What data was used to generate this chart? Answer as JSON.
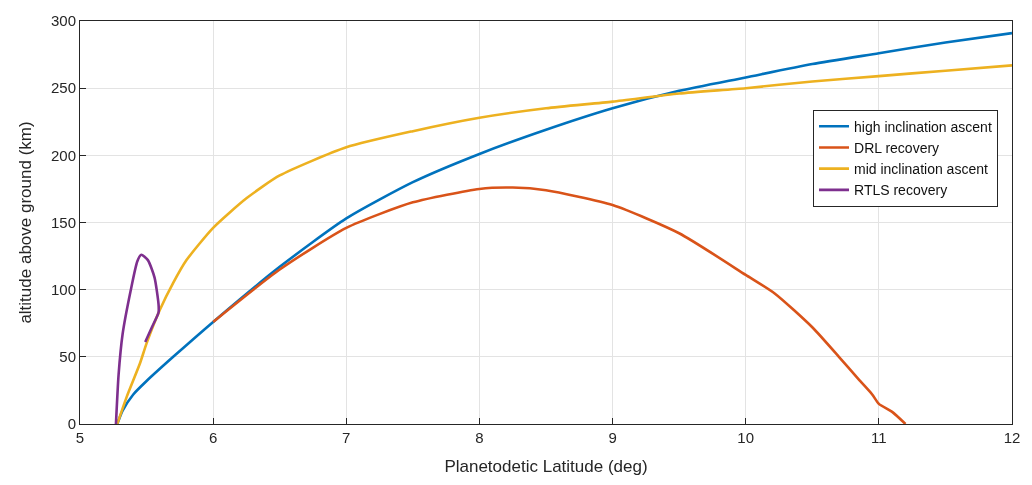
{
  "chart_data": {
    "type": "line",
    "xlabel": "Planetodetic Latitude (deg)",
    "ylabel": "altitude above ground (km)",
    "xlim": [
      5,
      12
    ],
    "ylim": [
      0,
      300
    ],
    "xticks": [
      5,
      6,
      7,
      8,
      9,
      10,
      11,
      12
    ],
    "yticks": [
      0,
      50,
      100,
      150,
      200,
      250,
      300
    ],
    "grid": true,
    "legend": "right",
    "marker": "none",
    "line_style": "solid",
    "series": [
      {
        "name": "high inclination ascent",
        "color": "#0072bd",
        "x": [
          5.28,
          5.32,
          5.4,
          5.5,
          5.7,
          6,
          6.5,
          7,
          7.5,
          8,
          8.5,
          9,
          9.5,
          10,
          10.5,
          11,
          11.5,
          12
        ],
        "values": [
          0,
          10,
          22,
          32,
          50,
          76,
          117,
          153,
          180,
          201,
          219,
          235,
          248,
          258,
          268,
          276,
          284,
          291
        ]
      },
      {
        "name": "DRL recovery",
        "color": "#d95319",
        "x": [
          6,
          6.5,
          7,
          7.5,
          8,
          8.25,
          8.5,
          9,
          9.5,
          10,
          10.22,
          10.5,
          10.7,
          10.85,
          10.95,
          11,
          11.1,
          11.2
        ],
        "values": [
          76,
          115,
          146,
          165,
          175,
          176,
          174,
          163,
          142,
          111,
          97,
          72,
          50,
          33,
          22,
          15,
          9,
          0
        ]
      },
      {
        "name": "mid inclination ascent",
        "color": "#edb120",
        "x": [
          5.28,
          5.35,
          5.45,
          5.5,
          5.6,
          5.7,
          5.8,
          6,
          6.25,
          6.5,
          7,
          7.5,
          8,
          8.5,
          9,
          9.5,
          10,
          10.5,
          11,
          11.5,
          12
        ],
        "values": [
          0,
          20,
          45,
          60,
          85,
          105,
          122,
          146,
          168,
          185,
          206,
          218,
          228,
          235,
          240,
          246,
          250,
          255,
          259,
          263,
          267
        ]
      },
      {
        "name": "RTLS recovery",
        "color": "#7e2f8e",
        "x": [
          5.27,
          5.29,
          5.32,
          5.38,
          5.43,
          5.46,
          5.51,
          5.56,
          5.59,
          5.59,
          5.54,
          5.49
        ],
        "values": [
          0,
          37,
          67,
          99,
          121,
          126,
          122,
          109,
          89,
          83,
          72,
          61
        ]
      }
    ]
  }
}
